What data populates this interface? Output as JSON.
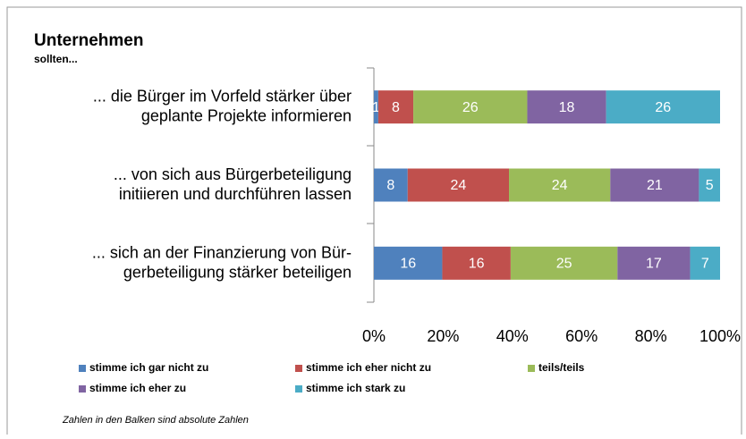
{
  "chart_data": {
    "type": "bar",
    "orientation": "horizontal",
    "stacked_percent": true,
    "title": "Unternehmen",
    "subtitle": "sollten...",
    "note": "Zahlen in den Balken sind absolute Zahlen",
    "categories": [
      [
        "... die Bürger im Vorfeld stärker über",
        "geplante Projekte informieren"
      ],
      [
        "... von sich aus Bürgerbeteiligung",
        "initiieren und durchführen lassen"
      ],
      [
        "... sich an der Finanzierung von Bür-",
        "gerbeteiligung stärker beteiligen"
      ]
    ],
    "series": [
      {
        "name": "stimme ich gar nicht zu",
        "color": "#4f81bd",
        "values": [
          1,
          8,
          16
        ]
      },
      {
        "name": "stimme ich eher nicht zu",
        "color": "#c0504d",
        "values": [
          8,
          24,
          16
        ]
      },
      {
        "name": "teils/teils",
        "color": "#9bbb59",
        "values": [
          26,
          24,
          25
        ]
      },
      {
        "name": "stimme ich eher zu",
        "color": "#8064a2",
        "values": [
          18,
          21,
          17
        ]
      },
      {
        "name": "stimme ich stark zu",
        "color": "#4bacc6",
        "values": [
          26,
          5,
          7
        ]
      }
    ],
    "xlim": [
      0,
      100
    ],
    "xticks": [
      {
        "value": 0,
        "label": "0%"
      },
      {
        "value": 20,
        "label": "20%"
      },
      {
        "value": 40,
        "label": "40%"
      },
      {
        "value": 60,
        "label": "60%"
      },
      {
        "value": 80,
        "label": "80%"
      },
      {
        "value": 100,
        "label": "100%"
      }
    ],
    "legend": "bottom"
  }
}
